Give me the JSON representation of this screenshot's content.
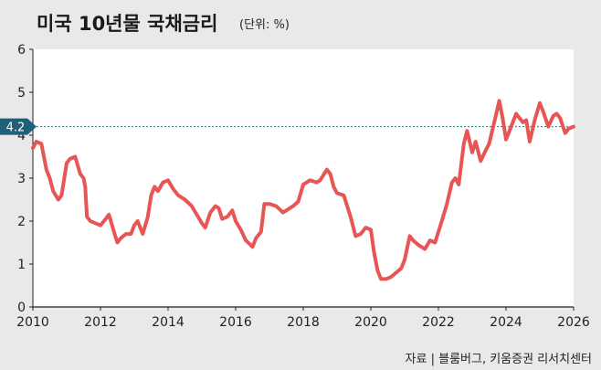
{
  "title": "미국 10년물 국채금리",
  "unit_label": "(단위: %)",
  "source": "자료 | 블룸버그, 키움증권 리서치센터",
  "colors": {
    "background": "#e9e9e9",
    "plot_background": "#ffffff",
    "line": "#e85555",
    "callout": "#1f5f7a",
    "reference_line": "#2a7a8a"
  },
  "chart_data": {
    "type": "line",
    "title": "미국 10년물 국채금리",
    "ylabel": "(단위: %)",
    "xlabel": "",
    "xlim": [
      2010,
      2026
    ],
    "ylim": [
      0,
      6
    ],
    "grid": false,
    "legend": "none",
    "x_tick_labels": [
      "2010",
      "2012",
      "2014",
      "2016",
      "2018",
      "2020",
      "2022",
      "2024",
      "2026"
    ],
    "y_tick_labels": [
      "0",
      "1",
      "2",
      "3",
      "4",
      "5",
      "6"
    ],
    "reference_value": 4.2,
    "reference_label": "4.2",
    "series": [
      {
        "x": [
          2010.0,
          2010.1,
          2010.25,
          2010.4,
          2010.5,
          2010.6,
          2010.75,
          2010.85,
          2011.0,
          2011.1,
          2011.25,
          2011.4,
          2011.5,
          2011.55,
          2011.6,
          2011.7,
          2011.85,
          2012.0,
          2012.15,
          2012.25,
          2012.4,
          2012.5,
          2012.6,
          2012.75,
          2012.9,
          2013.0,
          2013.1,
          2013.25,
          2013.4,
          2013.5,
          2013.6,
          2013.7,
          2013.85,
          2014.0,
          2014.15,
          2014.3,
          2014.5,
          2014.7,
          2014.85,
          2015.0,
          2015.1,
          2015.25,
          2015.4,
          2015.5,
          2015.6,
          2015.75,
          2015.9,
          2016.0,
          2016.15,
          2016.3,
          2016.5,
          2016.6,
          2016.75,
          2016.85,
          2017.0,
          2017.2,
          2017.4,
          2017.5,
          2017.7,
          2017.85,
          2018.0,
          2018.2,
          2018.4,
          2018.5,
          2018.7,
          2018.8,
          2018.9,
          2019.0,
          2019.2,
          2019.4,
          2019.55,
          2019.7,
          2019.85,
          2020.0,
          2020.1,
          2020.2,
          2020.3,
          2020.45,
          2020.6,
          2020.75,
          2020.9,
          2021.0,
          2021.15,
          2021.25,
          2021.4,
          2021.6,
          2021.75,
          2021.9,
          2022.0,
          2022.1,
          2022.25,
          2022.4,
          2022.5,
          2022.6,
          2022.75,
          2022.85,
          2023.0,
          2023.1,
          2023.25,
          2023.4,
          2023.5,
          2023.65,
          2023.8,
          2023.9,
          2024.0,
          2024.15,
          2024.3,
          2024.5,
          2024.6,
          2024.7,
          2024.85,
          2025.0,
          2025.1,
          2025.25,
          2025.4,
          2025.5,
          2025.6,
          2025.75,
          2025.85,
          2026.0
        ],
        "values": [
          3.7,
          3.85,
          3.8,
          3.2,
          3.0,
          2.7,
          2.5,
          2.6,
          3.35,
          3.45,
          3.5,
          3.1,
          3.0,
          2.8,
          2.1,
          2.0,
          1.95,
          1.9,
          2.05,
          2.15,
          1.75,
          1.5,
          1.6,
          1.7,
          1.7,
          1.9,
          2.0,
          1.7,
          2.1,
          2.6,
          2.8,
          2.7,
          2.9,
          2.95,
          2.75,
          2.6,
          2.5,
          2.35,
          2.15,
          1.95,
          1.85,
          2.2,
          2.35,
          2.3,
          2.05,
          2.1,
          2.25,
          2.0,
          1.8,
          1.55,
          1.4,
          1.6,
          1.75,
          2.4,
          2.4,
          2.35,
          2.2,
          2.25,
          2.35,
          2.45,
          2.85,
          2.95,
          2.9,
          2.95,
          3.2,
          3.1,
          2.8,
          2.65,
          2.6,
          2.1,
          1.65,
          1.7,
          1.85,
          1.8,
          1.25,
          0.85,
          0.65,
          0.65,
          0.7,
          0.8,
          0.9,
          1.1,
          1.65,
          1.55,
          1.45,
          1.35,
          1.55,
          1.5,
          1.75,
          2.0,
          2.4,
          2.9,
          3.0,
          2.85,
          3.8,
          4.1,
          3.6,
          3.85,
          3.4,
          3.65,
          3.8,
          4.3,
          4.8,
          4.4,
          3.9,
          4.2,
          4.5,
          4.3,
          4.35,
          3.85,
          4.35,
          4.75,
          4.55,
          4.2,
          4.45,
          4.5,
          4.4,
          4.05,
          4.15,
          4.2
        ]
      }
    ]
  }
}
